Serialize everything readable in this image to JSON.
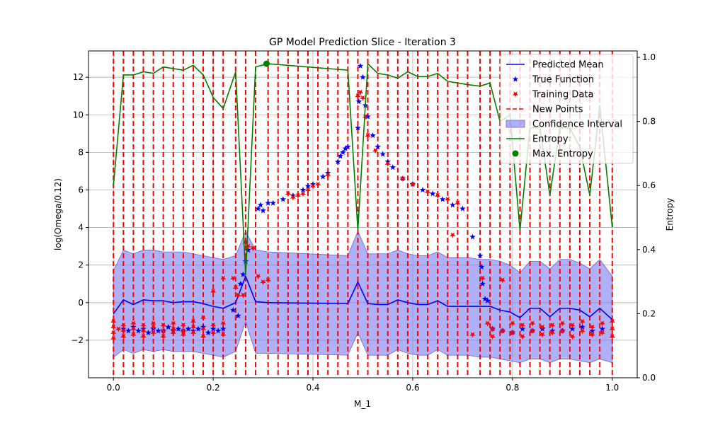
{
  "chart_data": {
    "type": "line",
    "title": "GP Model Prediction Slice - Iteration 3",
    "xlabel": "M_1",
    "ylabel": "log(Omega/0.12)",
    "y2label": "Entropy",
    "xlim": [
      -0.05,
      1.05
    ],
    "ylim": [
      -4.0,
      13.4
    ],
    "y2lim": [
      0.0,
      1.02
    ],
    "xticks": [
      "0.0",
      "0.2",
      "0.4",
      "0.6",
      "0.8",
      "1.0"
    ],
    "xtick_values": [
      0.0,
      0.2,
      0.4,
      0.6,
      0.8,
      1.0
    ],
    "yticks": [
      "−2",
      "0",
      "2",
      "4",
      "6",
      "8",
      "10",
      "12"
    ],
    "ytick_values": [
      -2,
      0,
      2,
      4,
      6,
      8,
      10,
      12
    ],
    "y2ticks": [
      "0.0",
      "0.2",
      "0.4",
      "0.6",
      "0.8",
      "1.0"
    ],
    "y2tick_values": [
      0.0,
      0.2,
      0.4,
      0.6,
      0.8,
      1.0
    ],
    "grid": true,
    "legend_position": "top-right",
    "legend": [
      "Predicted Mean",
      "True Function",
      "Training Data",
      "New Points",
      "Confidence Interval",
      "Entropy",
      "Max. Entropy"
    ],
    "colors": {
      "mean": "#0000ff",
      "true": "#0000ff",
      "training": "#ff0000",
      "new_points": "#ff0000",
      "ci_fill": "#7b7bf2",
      "entropy": "#008000",
      "max_entropy": "#008000"
    },
    "new_points_x": [
      0.0,
      0.02,
      0.04,
      0.06,
      0.08,
      0.1,
      0.12,
      0.14,
      0.16,
      0.18,
      0.2,
      0.22,
      0.245,
      0.265,
      0.285,
      0.31,
      0.33,
      0.35,
      0.37,
      0.39,
      0.41,
      0.43,
      0.45,
      0.47,
      0.49,
      0.51,
      0.53,
      0.55,
      0.57,
      0.59,
      0.61,
      0.63,
      0.65,
      0.67,
      0.69,
      0.71,
      0.735,
      0.755,
      0.775,
      0.795,
      0.815,
      0.835,
      0.855,
      0.875,
      0.895,
      0.915,
      0.935,
      0.955,
      0.975,
      1.0
    ],
    "predicted_mean": {
      "x": [
        0.0,
        0.02,
        0.04,
        0.06,
        0.08,
        0.1,
        0.12,
        0.14,
        0.16,
        0.18,
        0.2,
        0.22,
        0.245,
        0.265,
        0.285,
        0.31,
        0.47,
        0.49,
        0.51,
        0.53,
        0.55,
        0.57,
        0.59,
        0.61,
        0.63,
        0.65,
        0.67,
        0.69,
        0.71,
        0.735,
        0.755,
        0.775,
        0.795,
        0.815,
        0.835,
        0.855,
        0.875,
        0.895,
        0.915,
        0.935,
        0.955,
        0.975,
        1.0
      ],
      "y": [
        -0.6,
        0.15,
        -0.1,
        0.15,
        0.1,
        0.1,
        0.0,
        0.05,
        0.05,
        -0.05,
        -0.2,
        -0.3,
        0.0,
        1.4,
        0.05,
        0.0,
        -0.05,
        1.1,
        -0.05,
        -0.1,
        -0.1,
        0.15,
        0.0,
        -0.1,
        -0.1,
        0.1,
        -0.2,
        -0.2,
        -0.2,
        -0.2,
        -0.2,
        -0.4,
        -0.5,
        -0.8,
        -0.3,
        -0.3,
        -0.75,
        -0.3,
        -0.3,
        -0.4,
        -0.75,
        -0.3,
        -0.9
      ]
    },
    "ci_upper": [
      1.7,
      2.8,
      2.6,
      2.8,
      2.8,
      2.7,
      2.7,
      2.7,
      2.6,
      2.5,
      2.4,
      2.3,
      2.5,
      3.8,
      2.8,
      2.7,
      2.5,
      3.8,
      2.6,
      2.6,
      2.6,
      2.8,
      2.6,
      2.5,
      2.5,
      2.7,
      2.4,
      2.4,
      2.4,
      2.3,
      2.3,
      2.2,
      2.0,
      1.6,
      2.2,
      2.2,
      1.8,
      2.3,
      2.3,
      2.1,
      1.8,
      2.3,
      1.4
    ],
    "ci_lower": [
      -2.9,
      -2.5,
      -2.7,
      -2.5,
      -2.6,
      -2.5,
      -2.6,
      -2.6,
      -2.6,
      -2.7,
      -2.8,
      -2.9,
      -2.6,
      -1.0,
      -2.7,
      -2.7,
      -2.8,
      -1.6,
      -2.8,
      -2.8,
      -2.8,
      -2.5,
      -2.7,
      -2.8,
      -2.8,
      -2.5,
      -2.8,
      -2.8,
      -2.8,
      -2.9,
      -2.9,
      -3.0,
      -3.1,
      -3.2,
      -3.0,
      -3.0,
      -3.2,
      -3.0,
      -3.0,
      -3.1,
      -3.2,
      -3.0,
      -3.2
    ],
    "entropy": {
      "x": [
        0.0,
        0.02,
        0.04,
        0.06,
        0.08,
        0.1,
        0.12,
        0.14,
        0.16,
        0.18,
        0.2,
        0.22,
        0.245,
        0.265,
        0.285,
        0.31,
        0.47,
        0.49,
        0.51,
        0.53,
        0.55,
        0.57,
        0.59,
        0.61,
        0.63,
        0.65,
        0.67,
        0.69,
        0.71,
        0.735,
        0.755,
        0.775,
        0.795,
        0.815,
        0.835,
        0.855,
        0.875,
        0.895,
        0.915,
        0.935,
        0.955,
        0.975,
        1.0
      ],
      "y": [
        0.6,
        0.945,
        0.945,
        0.955,
        0.95,
        0.97,
        0.965,
        0.96,
        0.975,
        0.945,
        0.875,
        0.84,
        0.955,
        0.32,
        0.97,
        0.98,
        0.96,
        0.46,
        0.98,
        0.95,
        0.945,
        0.935,
        0.955,
        0.94,
        0.94,
        0.95,
        0.925,
        0.92,
        0.915,
        0.91,
        0.92,
        0.8,
        0.82,
        0.46,
        0.78,
        0.78,
        0.57,
        0.78,
        0.78,
        0.72,
        0.57,
        0.85,
        0.47
      ]
    },
    "max_entropy": {
      "x": 0.307,
      "y": 0.98
    },
    "true_function": {
      "x": [
        0.02,
        0.03,
        0.04,
        0.05,
        0.06,
        0.07,
        0.08,
        0.09,
        0.1,
        0.11,
        0.12,
        0.13,
        0.14,
        0.15,
        0.16,
        0.17,
        0.18,
        0.19,
        0.2,
        0.21,
        0.22,
        0.24,
        0.25,
        0.255,
        0.26,
        0.265,
        0.27,
        0.29,
        0.295,
        0.3,
        0.31,
        0.32,
        0.34,
        0.36,
        0.38,
        0.39,
        0.4,
        0.42,
        0.43,
        0.45,
        0.455,
        0.46,
        0.465,
        0.47,
        0.49,
        0.492,
        0.495,
        0.5,
        0.505,
        0.51,
        0.52,
        0.53,
        0.54,
        0.55,
        0.56,
        0.58,
        0.6,
        0.62,
        0.64,
        0.66,
        0.68,
        0.7,
        0.72,
        0.735,
        0.738,
        0.74,
        0.745,
        0.75,
        0.76,
        0.78,
        0.8,
        0.82,
        0.84,
        0.86,
        0.88,
        0.9,
        0.92,
        0.94,
        0.96,
        0.98
      ],
      "y": [
        -1.4,
        -1.5,
        -1.3,
        -1.5,
        -1.4,
        -1.6,
        -1.4,
        -1.5,
        -1.5,
        -1.3,
        -1.5,
        -1.4,
        -1.5,
        -1.4,
        -1.5,
        -1.4,
        -1.3,
        -1.6,
        -1.4,
        -1.5,
        -1.4,
        -0.4,
        -0.7,
        1.0,
        1.5,
        2.2,
        2.8,
        5.0,
        5.2,
        4.9,
        5.3,
        5.3,
        5.5,
        5.7,
        6.0,
        6.2,
        6.3,
        6.7,
        6.9,
        7.5,
        7.8,
        8.0,
        8.2,
        8.3,
        9.3,
        10.7,
        12.6,
        12.0,
        10.5,
        9.9,
        8.9,
        8.3,
        7.9,
        7.5,
        7.2,
        6.6,
        6.3,
        6.0,
        5.8,
        5.5,
        5.2,
        5.0,
        3.5,
        2.5,
        1.9,
        1.0,
        0.2,
        0.1,
        -1.4,
        -1.5,
        -1.6,
        -1.4,
        -1.5,
        -1.4,
        -1.5,
        -1.5,
        -1.4,
        -1.3,
        -1.5,
        -1.4
      ]
    },
    "training_data": {
      "x": [
        0.0,
        0.0,
        0.0,
        0.0,
        0.01,
        0.02,
        0.02,
        0.02,
        0.04,
        0.04,
        0.04,
        0.06,
        0.06,
        0.06,
        0.08,
        0.08,
        0.08,
        0.1,
        0.1,
        0.1,
        0.12,
        0.12,
        0.12,
        0.14,
        0.14,
        0.14,
        0.16,
        0.16,
        0.16,
        0.18,
        0.18,
        0.18,
        0.2,
        0.2,
        0.2,
        0.22,
        0.22,
        0.22,
        0.24,
        0.245,
        0.25,
        0.26,
        0.265,
        0.27,
        0.28,
        0.29,
        0.3,
        0.31,
        0.35,
        0.36,
        0.37,
        0.38,
        0.39,
        0.4,
        0.41,
        0.43,
        0.49,
        0.495,
        0.5,
        0.505,
        0.51,
        0.525,
        0.55,
        0.58,
        0.6,
        0.63,
        0.65,
        0.67,
        0.68,
        0.69,
        0.72,
        0.74,
        0.75,
        0.76,
        0.76,
        0.78,
        0.78,
        0.8,
        0.8,
        0.82,
        0.82,
        0.84,
        0.84,
        0.86,
        0.86,
        0.88,
        0.88,
        0.9,
        0.9,
        0.92,
        0.92,
        0.94,
        0.94,
        0.96,
        0.96,
        0.98,
        0.98,
        1.0,
        1.0,
        1.0
      ],
      "y": [
        -1.0,
        -1.3,
        -1.6,
        -1.9,
        -1.4,
        -1.2,
        -1.5,
        -1.8,
        -1.1,
        -1.4,
        -1.7,
        -1.2,
        -1.5,
        -1.8,
        -1.3,
        -1.1,
        -1.6,
        -1.2,
        -1.5,
        -1.8,
        -1.1,
        -1.4,
        -1.6,
        -1.2,
        -1.5,
        -1.7,
        -1.3,
        -1.0,
        -1.6,
        -0.8,
        -1.4,
        -1.8,
        0.6,
        -1.2,
        -1.6,
        1.3,
        -1.1,
        -1.7,
        1.3,
        0.8,
        0.4,
        0.4,
        3.2,
        3.0,
        2.9,
        1.4,
        1.1,
        1.2,
        5.8,
        5.6,
        5.7,
        5.8,
        6.0,
        6.2,
        6.3,
        6.8,
        11.0,
        11.2,
        10.9,
        9.9,
        8.9,
        8.1,
        7.4,
        6.6,
        6.3,
        5.9,
        5.7,
        5.5,
        3.6,
        5.3,
        -1.7,
        1.3,
        -1.1,
        -1.4,
        -1.8,
        1.2,
        -1.5,
        -1.1,
        -1.6,
        -1.2,
        -1.8,
        -1.1,
        -1.5,
        -1.3,
        -1.7,
        -1.2,
        -1.6,
        -1.1,
        -1.5,
        -1.2,
        -1.8,
        -1.0,
        -1.5,
        -1.3,
        -1.7,
        -1.1,
        -1.6,
        -1.0,
        -1.4,
        -1.8
      ]
    }
  }
}
